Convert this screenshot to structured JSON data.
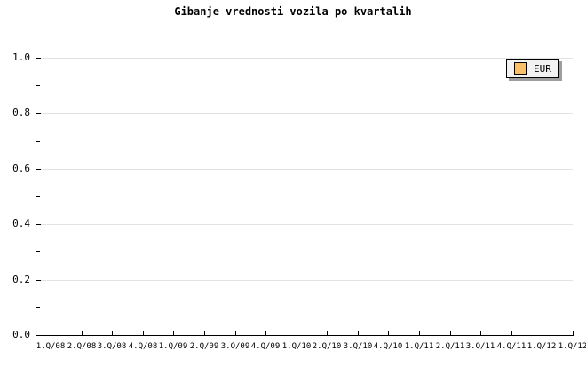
{
  "chart_data": {
    "type": "line",
    "title": "Gibanje vrednosti vozila po kvartalih",
    "xlabel": "",
    "ylabel": "",
    "ylim": [
      0.0,
      1.0
    ],
    "y_major_step": 0.2,
    "y_minor_step": 0.1,
    "grid": "horizontal-major",
    "y_tick_labels": [
      "1.0",
      "0.8",
      "0.6",
      "0.4",
      "0.2",
      "0.0"
    ],
    "x_tick_labels": [
      "1.Q/08",
      "2.Q/08",
      "3.Q/08",
      "4.Q/08",
      "1.Q/09",
      "2.Q/09",
      "3.Q/09",
      "4.Q/09",
      "1.Q/10",
      "2.Q/10",
      "3.Q/10",
      "4.Q/10",
      "1.Q/11",
      "2.Q/11",
      "3.Q/11",
      "4.Q/11",
      "1.Q/12",
      "1.Q/12"
    ],
    "series": [
      {
        "name": "EUR",
        "color": "#F8C169",
        "values": []
      }
    ],
    "legend": {
      "position": "top-right",
      "entries": [
        {
          "label": "EUR",
          "swatch_color": "#F8C169"
        }
      ]
    },
    "colors": {
      "background": "#FFFFFF",
      "text": "#000000",
      "axis": "#000000",
      "gridline": "#E2E2E2",
      "legend_background": "#F2F2F2",
      "legend_border": "#000000",
      "legend_shadow": "#9E9E9E"
    }
  }
}
